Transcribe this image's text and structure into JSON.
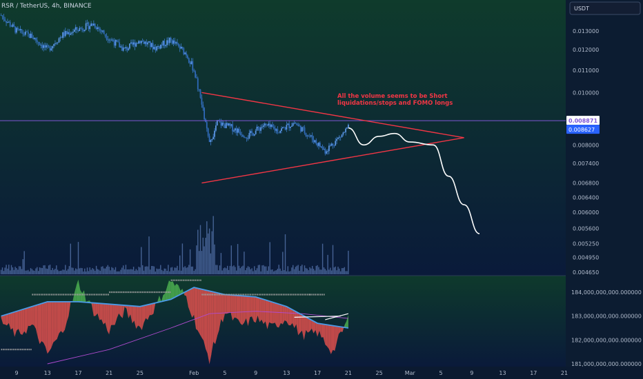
{
  "header": {
    "symbol_title": "RSR / TetherUS, 4h, BINANCE",
    "currency_button": "USDT"
  },
  "colors": {
    "background_top": "#0f3b2c",
    "background_bottom": "#0a1a3a",
    "price_line": "#7f57d6",
    "last_price_badge": "#2962ff",
    "triangle": "#f23645",
    "projection": "#ffffff",
    "annotation": "#f23645",
    "candle": "#3d7ecf",
    "volume": "#5a79b3",
    "bull_fill": "#4caf50",
    "bear_fill": "#e0504e",
    "ma_fast": "#4b9be8",
    "ma_slow": "#b14bd1",
    "stops": "#9e9e9e"
  },
  "annotation": "All the volume seems to be Short liquidations/stops and FOMO longs",
  "chart_data": [
    {
      "type": "candlestick",
      "title": "RSR / TetherUS, 4h, BINANCE",
      "y_axis": {
        "ticks": [
          "0.013000",
          "0.012000",
          "0.011000",
          "0.010000",
          "0.008000",
          "0.007400",
          "0.006800",
          "0.006400",
          "0.006000",
          "0.005600",
          "0.005250",
          "0.004950",
          "0.004650"
        ],
        "tick_values": [
          0.013,
          0.012,
          0.011,
          0.01,
          0.008,
          0.0074,
          0.0068,
          0.0064,
          0.006,
          0.0056,
          0.00525,
          0.00495,
          0.00465
        ],
        "scale": "log"
      },
      "price_labels": [
        {
          "name": "horizontal-line",
          "value": "0.008871"
        },
        {
          "name": "last-price",
          "value": "0.008627"
        }
      ],
      "x_axis_ticks": [
        "9",
        "13",
        "17",
        "21",
        "25",
        "Feb",
        "5",
        "9",
        "13",
        "17",
        "21",
        "25",
        "Mar",
        "5",
        "9",
        "13",
        "17",
        "21"
      ],
      "x_tick_dates": [
        "2021-01-09",
        "2021-01-13",
        "2021-01-17",
        "2021-01-21",
        "2021-01-25",
        "2021-02-01",
        "2021-02-05",
        "2021-02-09",
        "2021-02-13",
        "2021-02-17",
        "2021-02-21",
        "2021-02-25",
        "2021-03-01",
        "2021-03-05",
        "2021-03-09",
        "2021-03-13",
        "2021-03-17",
        "2021-03-21"
      ],
      "price_path": [
        [
          "2021-01-07",
          0.0139
        ],
        [
          "2021-01-09",
          0.013
        ],
        [
          "2021-01-11",
          0.0127
        ],
        [
          "2021-01-13",
          0.012
        ],
        [
          "2021-01-15",
          0.0128
        ],
        [
          "2021-01-17",
          0.0131
        ],
        [
          "2021-01-19",
          0.0134
        ],
        [
          "2021-01-21",
          0.0126
        ],
        [
          "2021-01-23",
          0.012
        ],
        [
          "2021-01-25",
          0.0125
        ],
        [
          "2021-01-27",
          0.0121
        ],
        [
          "2021-01-29",
          0.0125
        ],
        [
          "2021-01-31",
          0.0118
        ],
        [
          "2021-02-01",
          0.011
        ],
        [
          "2021-02-02",
          0.0095
        ],
        [
          "2021-02-03",
          0.008
        ],
        [
          "2021-02-04",
          0.0088
        ],
        [
          "2021-02-06",
          0.0086
        ],
        [
          "2021-02-08",
          0.0083
        ],
        [
          "2021-02-10",
          0.0087
        ],
        [
          "2021-02-12",
          0.0085
        ],
        [
          "2021-02-14",
          0.0088
        ],
        [
          "2021-02-16",
          0.0083
        ],
        [
          "2021-02-18",
          0.0078
        ],
        [
          "2021-02-20",
          0.0083
        ],
        [
          "2021-02-21",
          0.0086
        ]
      ],
      "triangle": {
        "upper": [
          [
            "2021-02-02",
            0.01
          ],
          [
            "2021-03-08",
            0.00825
          ]
        ],
        "lower": [
          [
            "2021-02-02",
            0.0068
          ],
          [
            "2021-03-08",
            0.00825
          ]
        ]
      },
      "projection": [
        [
          "2021-02-21",
          0.0086
        ],
        [
          "2021-02-23",
          0.008
        ],
        [
          "2021-02-25",
          0.0083
        ],
        [
          "2021-02-27",
          0.0084
        ],
        [
          "2021-03-01",
          0.0081
        ],
        [
          "2021-03-04",
          0.008
        ],
        [
          "2021-03-06",
          0.007
        ],
        [
          "2021-03-08",
          0.0062
        ],
        [
          "2021-03-10",
          0.00548
        ]
      ]
    },
    {
      "type": "area",
      "title": "",
      "y_axis": {
        "ticks": [
          "184,000,000,000.000000",
          "183,000,000,000.000000",
          "182,000,000,000.000000",
          "181,000,000,000.000000"
        ],
        "tick_values": [
          184,
          183,
          182,
          181
        ]
      },
      "oscillator": [
        [
          "2021-01-07",
          182.8
        ],
        [
          "2021-01-09",
          182.2
        ],
        [
          "2021-01-11",
          182.6
        ],
        [
          "2021-01-13",
          181.4
        ],
        [
          "2021-01-15",
          182.4
        ],
        [
          "2021-01-17",
          184.4
        ],
        [
          "2021-01-19",
          183.2
        ],
        [
          "2021-01-21",
          182.4
        ],
        [
          "2021-01-23",
          183.2
        ],
        [
          "2021-01-25",
          182.5
        ],
        [
          "2021-01-27",
          183.4
        ],
        [
          "2021-01-29",
          184.5
        ],
        [
          "2021-01-31",
          183.8
        ],
        [
          "2021-02-02",
          182.0
        ],
        [
          "2021-02-03",
          181.2
        ],
        [
          "2021-02-05",
          183.2
        ],
        [
          "2021-02-07",
          182.6
        ],
        [
          "2021-02-09",
          182.9
        ],
        [
          "2021-02-11",
          182.5
        ],
        [
          "2021-02-13",
          182.9
        ],
        [
          "2021-02-15",
          182.2
        ],
        [
          "2021-02-17",
          182.3
        ],
        [
          "2021-02-19",
          181.5
        ],
        [
          "2021-02-21",
          182.9
        ]
      ],
      "ma_fast": [
        [
          "2021-01-07",
          183.0
        ],
        [
          "2021-01-13",
          183.6
        ],
        [
          "2021-01-17",
          183.6
        ],
        [
          "2021-01-21",
          183.5
        ],
        [
          "2021-01-25",
          183.4
        ],
        [
          "2021-01-29",
          183.7
        ],
        [
          "2021-02-01",
          184.2
        ],
        [
          "2021-02-05",
          183.9
        ],
        [
          "2021-02-09",
          183.8
        ],
        [
          "2021-02-13",
          183.4
        ],
        [
          "2021-02-17",
          182.7
        ],
        [
          "2021-02-21",
          182.5
        ]
      ],
      "ma_slow": [
        [
          "2021-01-13",
          181.0
        ],
        [
          "2021-01-21",
          181.6
        ],
        [
          "2021-01-29",
          182.5
        ],
        [
          "2021-02-03",
          183.1
        ],
        [
          "2021-02-09",
          183.2
        ],
        [
          "2021-02-15",
          183.1
        ],
        [
          "2021-02-21",
          182.9
        ]
      ],
      "stop_levels": [
        [
          "2021-01-07",
          181.6
        ],
        [
          "2021-01-11",
          183.9
        ],
        [
          "2021-01-21",
          184.0
        ],
        [
          "2021-01-29",
          184.5
        ],
        [
          "2021-02-02",
          183.9
        ],
        [
          "2021-02-16",
          183.9
        ],
        [
          "2021-02-18",
          183.2
        ]
      ],
      "white_lines": [
        [
          [
            "2021-02-14",
            182.95
          ],
          [
            "2021-02-20",
            183.0
          ]
        ],
        [
          [
            "2021-02-18",
            182.85
          ],
          [
            "2021-02-21",
            183.1
          ]
        ]
      ]
    }
  ]
}
